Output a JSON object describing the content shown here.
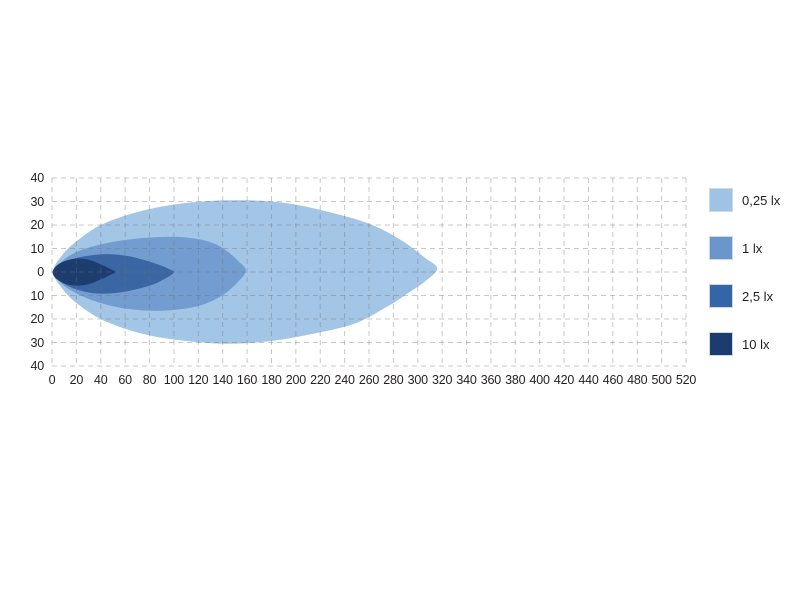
{
  "chart_data": {
    "type": "area",
    "subtype": "isolux-beam-pattern",
    "title": "",
    "xlabel": "",
    "ylabel": "",
    "xlim": [
      0,
      520
    ],
    "ylim": [
      -40,
      40
    ],
    "grid": {
      "style": "dashed",
      "color": "rgba(110,110,110,0.38)"
    },
    "legend_position": "right",
    "x_ticks": [
      0,
      20,
      40,
      60,
      80,
      100,
      120,
      140,
      160,
      180,
      200,
      220,
      240,
      260,
      280,
      300,
      320,
      340,
      360,
      380,
      400,
      420,
      440,
      460,
      480,
      500,
      520
    ],
    "y_grid_values": [
      -40,
      -30,
      -20,
      -10,
      0,
      10,
      20,
      30,
      40
    ],
    "y_tick_labels": [
      "40",
      "30",
      "20",
      "10",
      "0",
      "10",
      "20",
      "30",
      "40"
    ],
    "series": [
      {
        "name": "0,25 lx",
        "color": "#a3c6e7",
        "reach_m": 316,
        "max_half_width_m": 30.5,
        "outline": [
          [
            1,
            0
          ],
          [
            8,
            7
          ],
          [
            20,
            13
          ],
          [
            40,
            20
          ],
          [
            70,
            25.5
          ],
          [
            105,
            29
          ],
          [
            145,
            30.5
          ],
          [
            190,
            29.5
          ],
          [
            235,
            24.5
          ],
          [
            265,
            19.5
          ],
          [
            288,
            13
          ],
          [
            306,
            6
          ],
          [
            316,
            1.5
          ],
          [
            306,
            -4
          ],
          [
            292,
            -9
          ],
          [
            274,
            -15
          ],
          [
            248,
            -22
          ],
          [
            212,
            -26.5
          ],
          [
            178,
            -29.5
          ],
          [
            142,
            -30.5
          ],
          [
            104,
            -29
          ],
          [
            72,
            -26
          ],
          [
            42,
            -20.5
          ],
          [
            22,
            -14
          ],
          [
            9,
            -7.5
          ]
        ]
      },
      {
        "name": "1 lx",
        "color": "#739dd1",
        "reach_m": 159,
        "max_half_width_m": 16.5,
        "outline": [
          [
            1,
            0
          ],
          [
            7,
            4
          ],
          [
            18,
            8
          ],
          [
            34,
            11
          ],
          [
            58,
            13.5
          ],
          [
            85,
            14.8
          ],
          [
            108,
            14.8
          ],
          [
            128,
            13
          ],
          [
            142,
            9.5
          ],
          [
            153,
            4.5
          ],
          [
            159,
            0.5
          ],
          [
            152,
            -4.5
          ],
          [
            141,
            -9.5
          ],
          [
            126,
            -13.5
          ],
          [
            106,
            -15.8
          ],
          [
            82,
            -16.5
          ],
          [
            56,
            -15.2
          ],
          [
            33,
            -12
          ],
          [
            16,
            -8
          ],
          [
            6,
            -4
          ]
        ]
      },
      {
        "name": "2,5 lx",
        "color": "#3a67a4",
        "reach_m": 100,
        "max_half_width_m": 9.3,
        "outline": [
          [
            1,
            0
          ],
          [
            6,
            2.8
          ],
          [
            15,
            5.2
          ],
          [
            28,
            6.8
          ],
          [
            44,
            7.6
          ],
          [
            60,
            7
          ],
          [
            75,
            5.2
          ],
          [
            88,
            3
          ],
          [
            97,
            1
          ],
          [
            100,
            -0.3
          ],
          [
            92,
            -3
          ],
          [
            82,
            -5.5
          ],
          [
            68,
            -7.5
          ],
          [
            54,
            -8.8
          ],
          [
            40,
            -9.2
          ],
          [
            27,
            -8.4
          ],
          [
            15,
            -6.4
          ],
          [
            6,
            -3.6
          ]
        ]
      },
      {
        "name": "10 lx",
        "color": "#1d3d6f",
        "reach_m": 52,
        "max_half_width_m": 5.8,
        "outline": [
          [
            0.5,
            0
          ],
          [
            4,
            2.8
          ],
          [
            11,
            4.8
          ],
          [
            20,
            5.7
          ],
          [
            30,
            5.2
          ],
          [
            40,
            3.2
          ],
          [
            49,
            1
          ],
          [
            52,
            0
          ],
          [
            48,
            -1.2
          ],
          [
            39,
            -3.4
          ],
          [
            29,
            -5.3
          ],
          [
            19,
            -5.8
          ],
          [
            10,
            -4.8
          ],
          [
            3,
            -2.6
          ]
        ]
      }
    ]
  },
  "legend": {
    "items": [
      {
        "label": "0,25 lx",
        "color": "#9ec3e5"
      },
      {
        "label": "1 lx",
        "color": "#6b96cc"
      },
      {
        "label": "2,5 lx",
        "color": "#3365a7"
      },
      {
        "label": "10 lx",
        "color": "#1c3b6e"
      }
    ]
  },
  "axes": {
    "text_color": "#231f20"
  }
}
